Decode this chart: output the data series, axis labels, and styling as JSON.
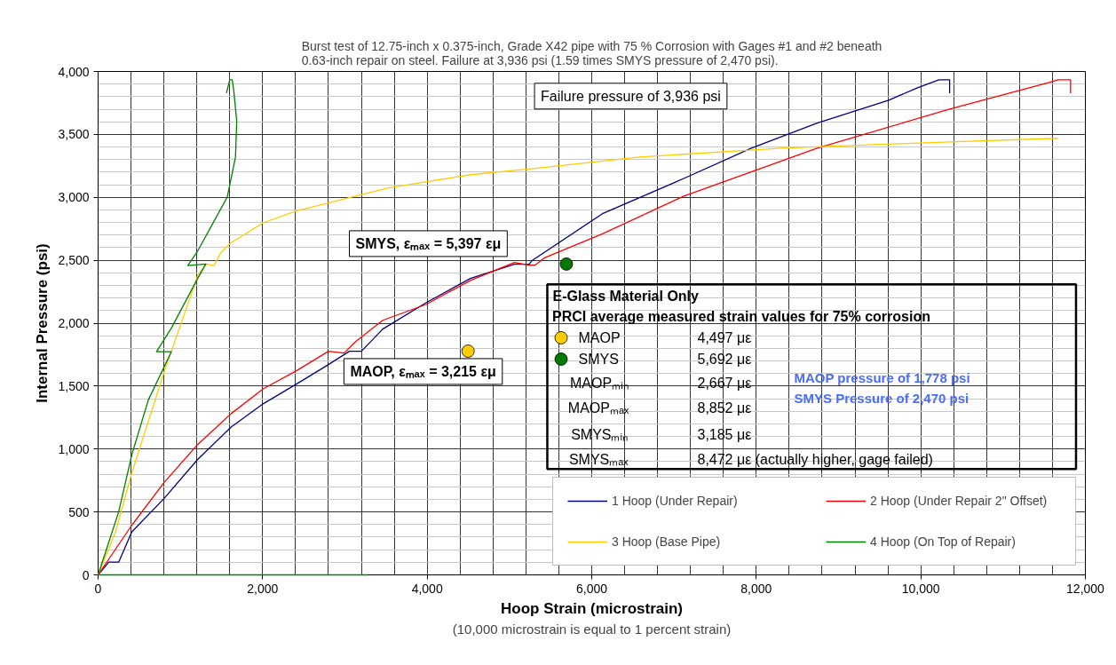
{
  "chart_data": {
    "type": "line",
    "title": "Burst test of 12.75-inch x 0.375-inch, Grade X42 pipe with 75 % Corrosion with Gages #1 and #2 beneath 0.63-inch repair on steel. Failure at 3,936 psi (1.59 times SMYS pressure of 2,470 psi).",
    "xlabel": "Hoop Strain (microstrain)",
    "ylabel": "Internal Pressure (psi)",
    "xlim": [
      0,
      12000
    ],
    "ylim": [
      0,
      4000
    ],
    "xticks": [
      0,
      {
        "value": 2000,
        "label": "2,000"
      },
      {
        "value": 4000,
        "label": "4,000"
      },
      {
        "value": 6000,
        "label": "6,000"
      },
      {
        "value": 8000,
        "label": "8,000"
      },
      {
        "value": 10000,
        "label": "10,000"
      },
      {
        "value": 12000,
        "label": "12,000"
      }
    ],
    "yticks": [
      0,
      500,
      {
        "value": 1000,
        "label": "1,000"
      },
      {
        "value": 1500,
        "label": "1,500"
      },
      {
        "value": 2000,
        "label": "2,000"
      },
      {
        "value": 2500,
        "label": "2,500"
      },
      {
        "value": 3000,
        "label": "3,000"
      },
      {
        "value": 3500,
        "label": "3,500"
      },
      {
        "value": 4000,
        "label": "4,000"
      }
    ],
    "grid": true,
    "legend": "bottom right",
    "marker": "none",
    "line_style": "solid",
    "series": [
      {
        "name": "1 Hoop (Under Repair)",
        "color": "#000080",
        "x": [
          0,
          130,
          250,
          410,
          800,
          1210,
          1620,
          2010,
          2410,
          2800,
          3055,
          3200,
          3460,
          3990,
          4525,
          5060,
          5240,
          5270,
          6130,
          7120,
          7940,
          8740,
          9610,
          9960,
          10220,
          10350,
          10350
        ],
        "values": [
          0,
          101,
          101,
          342,
          606,
          917,
          1177,
          1361,
          1516,
          1671,
          1777,
          1777,
          1953,
          2164,
          2355,
          2468,
          2468,
          2495,
          2870,
          3150,
          3390,
          3590,
          3772,
          3870,
          3934,
          3934,
          3828
        ]
      },
      {
        "name": "2 Hoop (Under Repair 2\" Offset)",
        "color": "#ff0000",
        "x": [
          0,
          410,
          800,
          1210,
          1620,
          2010,
          2410,
          2800,
          2990,
          3130,
          3460,
          3990,
          4525,
          5060,
          5240,
          5310,
          5420,
          6130,
          7120,
          8740,
          10350,
          11560,
          11670,
          11820,
          11820
        ],
        "values": [
          0,
          395,
          733,
          1036,
          1283,
          1480,
          1622,
          1777,
          1763,
          1854,
          2023,
          2150,
          2340,
          2482,
          2461,
          2461,
          2517,
          2710,
          3010,
          3391,
          3701,
          3913,
          3934,
          3934,
          3828
        ]
      },
      {
        "name": "3 Hoop (Base Pipe)",
        "color": "#ffcc00",
        "x": [
          0,
          212,
          410,
          800,
          890,
          1210,
          1310,
          1410,
          1490,
          1610,
          2010,
          2410,
          3130,
          3530,
          4530,
          5290,
          6580,
          8310,
          10040,
          11670
        ],
        "values": [
          0,
          342,
          811,
          1607,
          1777,
          2376,
          2470,
          2457,
          2559,
          2637,
          2799,
          2891,
          3010,
          3075,
          3180,
          3229,
          3320,
          3391,
          3433,
          3469
        ]
      },
      {
        "name": "4 Hoop (On Top of Repair)",
        "color": "#008000",
        "x": [
          0,
          250,
          410,
          610,
          890,
          710,
          890,
          1210,
          1310,
          1090,
          1210,
          1570,
          1670,
          1685,
          1650,
          1630,
          1600,
          1560,
          null,
          0,
          3280
        ],
        "values": [
          0,
          500,
          955,
          1389,
          1773,
          1773,
          1960,
          2355,
          2470,
          2457,
          2573,
          3003,
          3320,
          3606,
          3842,
          3934,
          3934,
          3828,
          null,
          0,
          0
        ]
      },
      {
        "name": "MAOP",
        "type": "scatter",
        "marker": "circle",
        "color": "#ffcc00",
        "x": [
          4497
        ],
        "values": [
          1778
        ]
      },
      {
        "name": "SMYS",
        "type": "scatter",
        "marker": "circle",
        "color": "#007a00",
        "x": [
          5692
        ],
        "values": [
          2470
        ]
      }
    ],
    "annotations": [
      "Failure pressure of 3,936 psi",
      "SMYS, εₘₐₓ = 5,397 εμ",
      "MAOP, εₘₐₓ = 3,215 εμ",
      "E-Glass Material Only",
      "PRCI average measured strain values for 75% corrosion",
      "4,497 με",
      "5,692 με",
      "MAOPₘᵢₙ",
      "2,667 με",
      "MAOPₘₐₓ",
      "8,852 με",
      "SMYSₘᵢₙ",
      "3,185 με",
      "SMYSₘₐₓ",
      "8,472 με (actually higher, gage failed)",
      "MAOP pressure of 1,778 psi",
      "SMYS Pressure of 2,470 psi",
      "(10,000 microstrain is equal to 1 percent strain)"
    ]
  }
}
